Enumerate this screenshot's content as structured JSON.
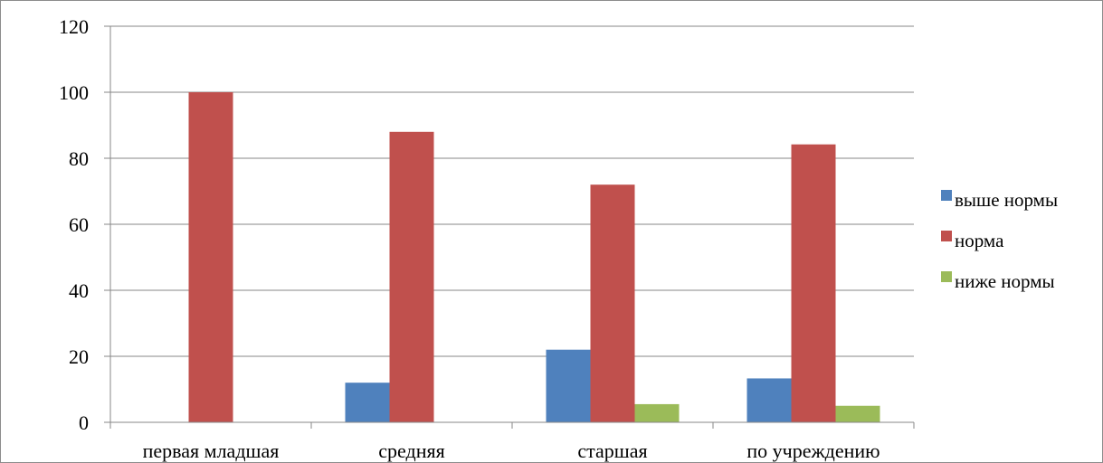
{
  "chart_data": {
    "type": "bar",
    "title": "",
    "xlabel": "",
    "ylabel": "",
    "categories": [
      "первая младшая",
      "средняя",
      "старшая",
      "по учреждению"
    ],
    "series": [
      {
        "name": "выше нормы",
        "color": "#4f81bd",
        "values": [
          0,
          12,
          22,
          13.3
        ]
      },
      {
        "name": "норма",
        "color": "#c0504d",
        "values": [
          100,
          88,
          72,
          84.2
        ]
      },
      {
        "name": "ниже нормы",
        "color": "#9bbb59",
        "values": [
          0,
          0,
          5.5,
          5
        ]
      }
    ],
    "ylim": [
      0,
      120
    ],
    "yticks": [
      0,
      20,
      40,
      60,
      80,
      100,
      120
    ],
    "grid": true,
    "legend_position": "right"
  }
}
